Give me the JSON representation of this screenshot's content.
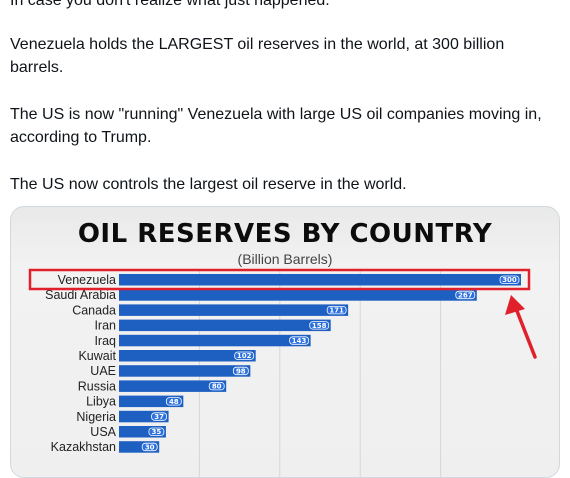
{
  "post": {
    "paragraphs": [
      "In case you don't realize what just happened.",
      "Venezuela holds the LARGEST oil reserves in the world, at 300 billion barrels.",
      "The US is now \"running\" Venezuela with large US oil companies moving in, according to Trump.",
      "The US now controls the largest oil reserve in the world."
    ]
  },
  "colors": {
    "bar": "#1e5fc2",
    "bar_pill": "#2a6fe0",
    "highlight": "#e0202a"
  },
  "annotation": {
    "arrow_icon": "red-arrow-icon",
    "highlight": "Venezuela"
  },
  "chart_data": {
    "type": "bar",
    "orientation": "horizontal",
    "title": "OIL RESERVES BY COUNTRY",
    "subtitle": "(Billion Barrels)",
    "categories": [
      "Venezuela",
      "Saudi Arabia",
      "Canada",
      "Iran",
      "Iraq",
      "Kuwait",
      "UAE",
      "Russia",
      "Libya",
      "Nigeria",
      "USA",
      "Kazakhstan"
    ],
    "values": [
      300,
      267,
      171,
      158,
      143,
      102,
      98,
      80,
      48,
      37,
      35,
      30
    ],
    "xlim": [
      0,
      310
    ],
    "grid": true
  }
}
